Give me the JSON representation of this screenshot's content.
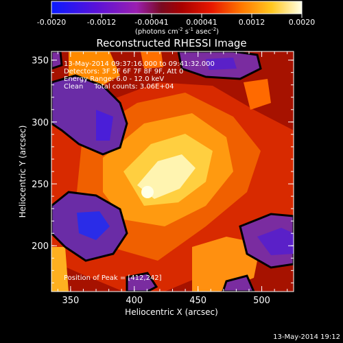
{
  "colorbar": {
    "ticks": [
      "-0.0020",
      "-0.0012",
      "-0.00041",
      "0.00041",
      "0.0012",
      "0.0020"
    ],
    "unit_prefix": "(photons cm",
    "unit_exp1": "-2",
    "unit_mid1": " s",
    "unit_exp2": "-1",
    "unit_mid2": " asec",
    "unit_exp3": "-2",
    "unit_suffix": ")"
  },
  "chart_data": {
    "type": "heatmap",
    "title": "Reconstructed RHESSI Image",
    "xlabel": "Heliocentric X (arcsec)",
    "ylabel": "Heliocentric Y (arcsec)",
    "xlim": [
      335,
      525
    ],
    "ylim": [
      163,
      357
    ],
    "xticks": [
      350,
      400,
      450,
      500
    ],
    "yticks": [
      200,
      250,
      300,
      350
    ],
    "zlim": [
      -0.002,
      0.002
    ],
    "colormap": "hot-with-blue-negative",
    "info_lines": [
      "13-May-2014 09:37:16.000 to 09:41:32.000",
      "Detectors: 3F 5F 6F 7F 8F 9F, Att 0",
      "Energy Range: 6.0 - 12.0 keV",
      "Clean     Total counts: 3.06E+04"
    ],
    "peak_label": "Position of Peak = [412,242]",
    "peak": [
      412,
      242
    ]
  },
  "footer": {
    "timestamp": "13-May-2014 19:12"
  }
}
